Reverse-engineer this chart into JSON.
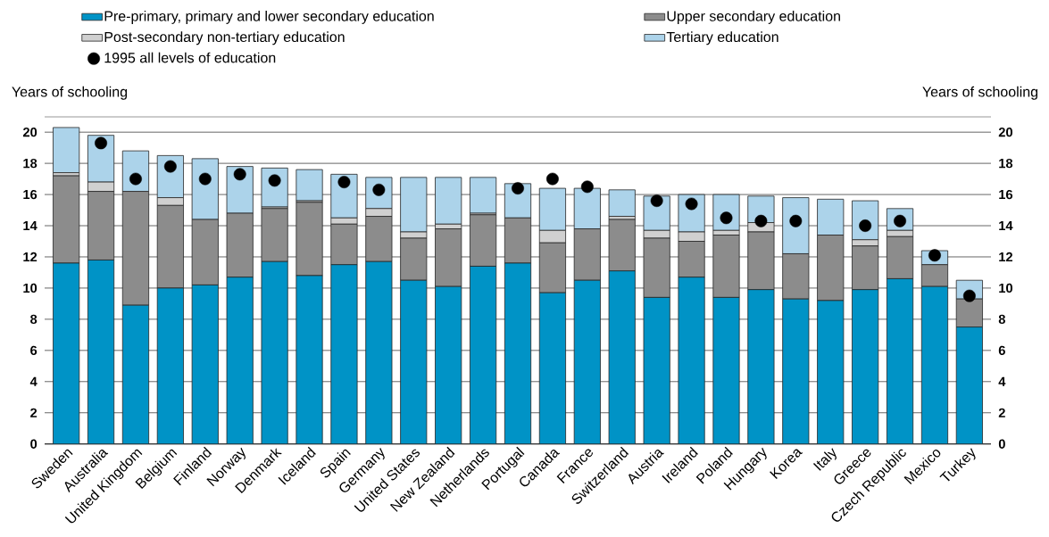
{
  "chart_data": {
    "type": "bar",
    "stacked": true,
    "ylabel": "Years of schooling",
    "y2label": "Years of schooling",
    "ylim": [
      0,
      21
    ],
    "yticks": [
      0,
      2,
      4,
      6,
      8,
      10,
      12,
      14,
      16,
      18,
      20
    ],
    "y2lim": [
      0,
      21
    ],
    "y2ticks": [
      0,
      2,
      4,
      6,
      8,
      10,
      12,
      14,
      16,
      18,
      20
    ],
    "grid": "y",
    "legend": "top",
    "categories": [
      "Sweden",
      "Australia",
      "United Kingdom",
      "Belgium",
      "Finland",
      "Norway",
      "Denmark",
      "Iceland",
      "Spain",
      "Germany",
      "United States",
      "New Zealand",
      "Netherlands",
      "Portugal",
      "Canada",
      "France",
      "Switzerland",
      "Austria",
      "Ireland",
      "Poland",
      "Hungary",
      "Korea",
      "Italy",
      "Greece",
      "Czech Republic",
      "Mexico",
      "Turkey"
    ],
    "series": [
      {
        "name": "Pre-primary, primary and lower secondary education",
        "color": "#0093c6",
        "values": [
          11.6,
          11.8,
          8.9,
          10.0,
          10.2,
          10.7,
          11.7,
          10.8,
          11.5,
          11.7,
          10.5,
          10.1,
          11.4,
          11.6,
          9.7,
          10.5,
          11.1,
          9.4,
          10.7,
          9.4,
          9.9,
          9.3,
          9.2,
          9.9,
          10.6,
          10.1,
          7.5
        ]
      },
      {
        "name": "Upper secondary education",
        "color": "#8c8c8c",
        "values": [
          5.6,
          4.4,
          7.3,
          5.3,
          4.2,
          4.1,
          3.4,
          4.7,
          2.6,
          2.9,
          2.7,
          3.7,
          3.3,
          2.9,
          3.2,
          3.3,
          3.3,
          3.8,
          2.3,
          4.0,
          3.7,
          2.9,
          4.2,
          2.8,
          2.7,
          1.4,
          1.8
        ]
      },
      {
        "name": "Post-secondary non-tertiary education",
        "color": "#d0d0d0",
        "values": [
          0.2,
          0.6,
          0,
          0.5,
          0,
          0,
          0.1,
          0.1,
          0.4,
          0.5,
          0.4,
          0.3,
          0.1,
          0,
          0.8,
          0,
          0.2,
          0.5,
          0.6,
          0.3,
          0.6,
          0,
          0,
          0.4,
          0.4,
          0,
          0
        ]
      },
      {
        "name": "Tertiary education",
        "color": "#acd3ea",
        "values": [
          2.9,
          3.0,
          2.6,
          2.7,
          3.9,
          3.0,
          2.5,
          2.0,
          2.8,
          2.0,
          3.5,
          3.0,
          2.3,
          2.2,
          2.7,
          2.6,
          1.7,
          2.2,
          2.4,
          2.3,
          1.7,
          3.6,
          2.3,
          2.5,
          1.4,
          0.9,
          1.2
        ]
      },
      {
        "name": "1995 all levels of education",
        "type": "scatter",
        "marker": "circle",
        "color": "#000000",
        "values": [
          null,
          19.3,
          17.0,
          17.8,
          17.0,
          17.3,
          16.9,
          null,
          16.8,
          16.3,
          null,
          null,
          null,
          16.4,
          17.0,
          16.5,
          null,
          15.6,
          15.4,
          14.5,
          14.3,
          14.3,
          null,
          14.0,
          14.3,
          12.1,
          9.5
        ]
      }
    ]
  }
}
